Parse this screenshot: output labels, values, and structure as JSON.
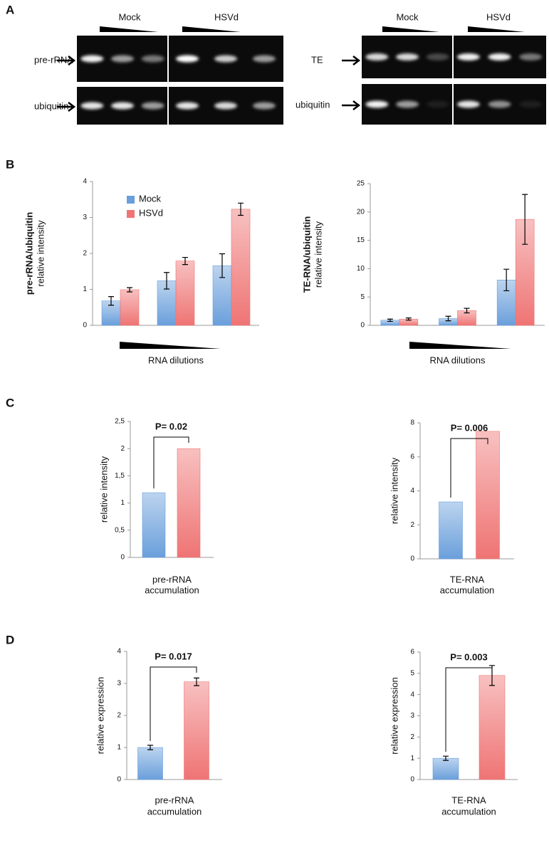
{
  "panel_labels": [
    "A",
    "B",
    "C",
    "D"
  ],
  "gels": [
    {
      "groups": [
        "Mock",
        "HSVd"
      ],
      "rows": [
        "pre-rRNA",
        "ubiquitin"
      ]
    },
    {
      "groups": [
        "Mock",
        "HSVd"
      ],
      "rows": [
        "TE",
        "ubiquitin"
      ]
    }
  ],
  "chart_data": [
    {
      "type": "bar",
      "categories": [
        null,
        null,
        null
      ],
      "series": [
        {
          "name": "Mock",
          "color": "#6a9fdb",
          "values": [
            0.68,
            1.24,
            1.66
          ],
          "errors": [
            0.12,
            0.23,
            0.33
          ]
        },
        {
          "name": "HSVd",
          "color": "#ef7474",
          "values": [
            0.99,
            1.79,
            3.23
          ],
          "errors": [
            0.06,
            0.1,
            0.17
          ]
        }
      ],
      "ylim": [
        0,
        4
      ],
      "yticks": [
        0,
        1,
        2,
        3,
        4
      ],
      "ylabel": [
        "pre-rRNA/ubiquitin",
        "relative intensity"
      ],
      "xlabel": [
        "RNA dilutions"
      ],
      "legend": "upper left"
    },
    {
      "type": "bar",
      "categories": [
        null,
        null,
        null
      ],
      "series": [
        {
          "color": "#6a9fdb",
          "values": [
            0.9,
            1.2,
            8.0
          ],
          "errors": [
            0.2,
            0.4,
            1.9
          ]
        },
        {
          "color": "#ef7474",
          "values": [
            1.1,
            2.6,
            18.7
          ],
          "errors": [
            0.2,
            0.4,
            4.4
          ]
        }
      ],
      "ylim": [
        0,
        25
      ],
      "yticks": [
        0,
        5,
        10,
        15,
        20,
        25
      ],
      "ylabel": [
        "TE-RNA/ubiquitin",
        "relative intensity"
      ],
      "xlabel": [
        "RNA dilutions"
      ]
    },
    {
      "type": "bar",
      "categories": [
        null
      ],
      "series": [
        {
          "color": "#6a9fdb",
          "values": [
            1.19
          ]
        },
        {
          "color": "#ef7474",
          "values": [
            2.0
          ]
        }
      ],
      "ylim": [
        0,
        2.5
      ],
      "yticks": [
        0,
        {
          "value": 0.5,
          "label": "0,5"
        },
        1,
        {
          "value": 1.5,
          "label": "1,5"
        },
        2,
        {
          "value": 2.5,
          "label": "2,5"
        }
      ],
      "ylabel": [
        "relative intensity"
      ],
      "xlabel": [
        "pre-rRNA",
        "accumulation"
      ],
      "annotation": "P= 0.02"
    },
    {
      "type": "bar",
      "categories": [
        null
      ],
      "series": [
        {
          "color": "#6a9fdb",
          "values": [
            3.35
          ]
        },
        {
          "color": "#ef7474",
          "values": [
            7.5
          ]
        }
      ],
      "ylim": [
        0,
        8
      ],
      "yticks": [
        0,
        2,
        4,
        6,
        8
      ],
      "ylabel": [
        "relative intensity"
      ],
      "xlabel": [
        "TE-RNA",
        "accumulation"
      ],
      "annotation": "P= 0.006"
    },
    {
      "type": "bar",
      "categories": [
        null
      ],
      "series": [
        {
          "color": "#6a9fdb",
          "values": [
            1.0
          ],
          "errors": [
            0.07
          ]
        },
        {
          "color": "#ef7474",
          "values": [
            3.05
          ],
          "errors": [
            0.12
          ]
        }
      ],
      "ylim": [
        0,
        4
      ],
      "yticks": [
        0,
        1,
        2,
        3,
        4
      ],
      "ylabel": [
        "relative expression"
      ],
      "xlabel": [
        "pre-rRNA",
        "accumulation"
      ],
      "annotation": "P= 0.017"
    },
    {
      "type": "bar",
      "categories": [
        null
      ],
      "series": [
        {
          "color": "#6a9fdb",
          "values": [
            1.0
          ],
          "errors": [
            0.1
          ]
        },
        {
          "color": "#ef7474",
          "values": [
            4.9
          ],
          "errors": [
            0.47
          ]
        }
      ],
      "ylim": [
        0,
        6
      ],
      "yticks": [
        0,
        1,
        2,
        3,
        4,
        5,
        6
      ],
      "ylabel": [
        "relative expression"
      ],
      "xlabel": [
        "TE-RNA",
        "accumulation"
      ],
      "annotation": "P= 0.003"
    }
  ]
}
